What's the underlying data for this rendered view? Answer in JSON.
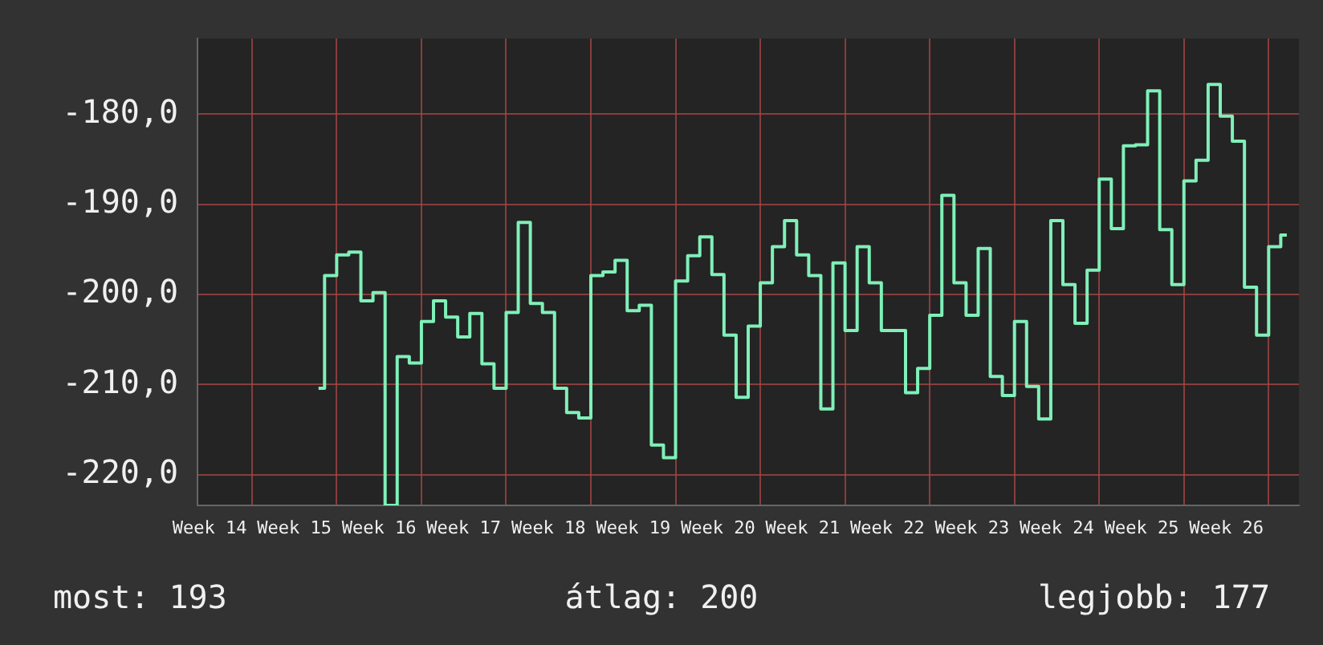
{
  "chart_data": {
    "type": "step",
    "marker": "none",
    "legend": false,
    "grid": true,
    "categories": [
      null,
      "Week 14",
      null,
      null,
      null,
      null,
      null,
      null,
      "Week 15",
      null,
      null,
      null,
      null,
      null,
      null,
      "Week 16",
      null,
      null,
      null,
      null,
      null,
      null,
      "Week 17",
      null,
      null,
      null,
      null,
      null,
      null,
      "Week 18",
      null,
      null,
      null,
      null,
      null,
      null,
      "Week 19",
      null,
      null,
      null,
      null,
      null,
      null,
      "Week 20",
      null,
      null,
      null,
      null,
      null,
      null,
      "Week 21",
      null,
      null,
      null,
      null,
      null,
      null,
      "Week 22",
      null,
      null,
      null,
      null,
      null,
      null,
      "Week 23",
      null,
      null,
      null,
      null,
      null,
      null,
      "Week 24",
      null,
      null,
      null,
      null,
      null,
      null,
      "Week 25",
      null,
      null,
      null,
      null,
      null,
      null,
      "Week 26",
      null,
      null,
      null,
      null,
      null,
      null
    ],
    "ylim": [
      -223.4,
      -171.6
    ],
    "yticks": [
      {
        "value": -220,
        "label": "-220,0"
      },
      {
        "value": -210,
        "label": "-210,0"
      },
      {
        "value": -200,
        "label": "-200,0"
      },
      {
        "value": -190,
        "label": "-190,0"
      },
      {
        "value": -180,
        "label": "-180,0"
      }
    ],
    "annotations": [
      "most: 193",
      "átlag: 200",
      "legjobb: 177"
    ],
    "series": [
      {
        "color": "#7ff0b8",
        "values": [
          null,
          null,
          null,
          null,
          null,
          null,
          null,
          null,
          null,
          null,
          -210.4,
          -197.9,
          -195.6,
          -195.3,
          -200.7,
          -199.8,
          -223.4,
          -206.9,
          -207.6,
          -203.0,
          -200.7,
          -202.5,
          -204.7,
          -202.1,
          -207.7,
          -210.4,
          -202.0,
          -192.0,
          -201.0,
          -202.0,
          -210.4,
          -213.1,
          -213.7,
          -197.9,
          -197.5,
          -196.2,
          -201.8,
          -201.2,
          -216.7,
          -218.1,
          -198.5,
          -195.7,
          -193.6,
          -197.8,
          -204.5,
          -211.4,
          -203.5,
          -198.7,
          -194.7,
          -191.8,
          -195.6,
          -197.9,
          -212.7,
          -196.5,
          -204.0,
          -194.7,
          -198.7,
          -204.0,
          -204.0,
          -210.9,
          -208.2,
          -202.3,
          -189.0,
          -198.7,
          -202.3,
          -194.9,
          -209.1,
          -211.2,
          -203.0,
          -210.2,
          -213.8,
          -191.8,
          -198.9,
          -203.2,
          -197.3,
          -187.2,
          -192.7,
          -183.5,
          -183.4,
          -177.4,
          -192.8,
          -198.9,
          -187.4,
          -185.1,
          -176.7,
          -180.2,
          -183.0,
          -199.2,
          -204.5,
          -194.7,
          -193.4,
          null
        ]
      }
    ]
  }
}
